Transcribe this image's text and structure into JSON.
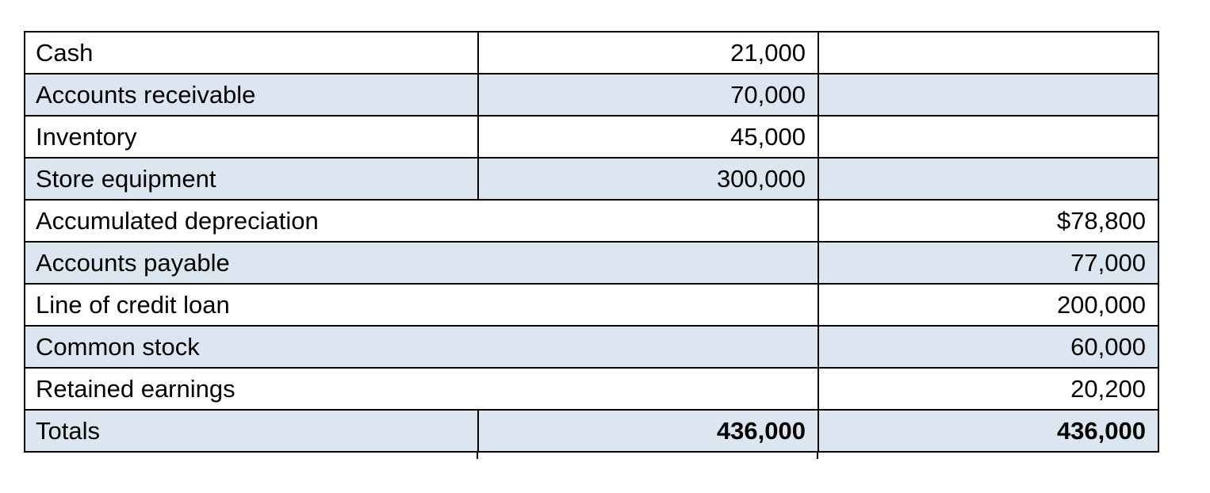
{
  "colors": {
    "row_alt_blue": "#dce6f1",
    "border": "#000000",
    "background": "#ffffff",
    "text": "#000000"
  },
  "table": {
    "rows": [
      {
        "label": "Cash",
        "debit": "21,000",
        "credit": ""
      },
      {
        "label": "Accounts receivable",
        "debit": "70,000",
        "credit": ""
      },
      {
        "label": "Inventory",
        "debit": "45,000",
        "credit": ""
      },
      {
        "label": "Store equipment",
        "debit": "300,000",
        "credit": ""
      },
      {
        "label": "Accumulated depreciation",
        "debit": "",
        "credit": "$78,800",
        "merged": true
      },
      {
        "label": "Accounts payable",
        "debit": "",
        "credit": "77,000",
        "merged": true
      },
      {
        "label": "Line of credit loan",
        "debit": "",
        "credit": "200,000",
        "merged": true
      },
      {
        "label": "Common stock",
        "debit": "",
        "credit": "60,000",
        "merged": true
      },
      {
        "label": "Retained earnings",
        "debit": "",
        "credit": "20,200",
        "merged": true
      },
      {
        "label": "Totals",
        "debit": "436,000",
        "credit": "436,000",
        "bold": true
      }
    ]
  }
}
